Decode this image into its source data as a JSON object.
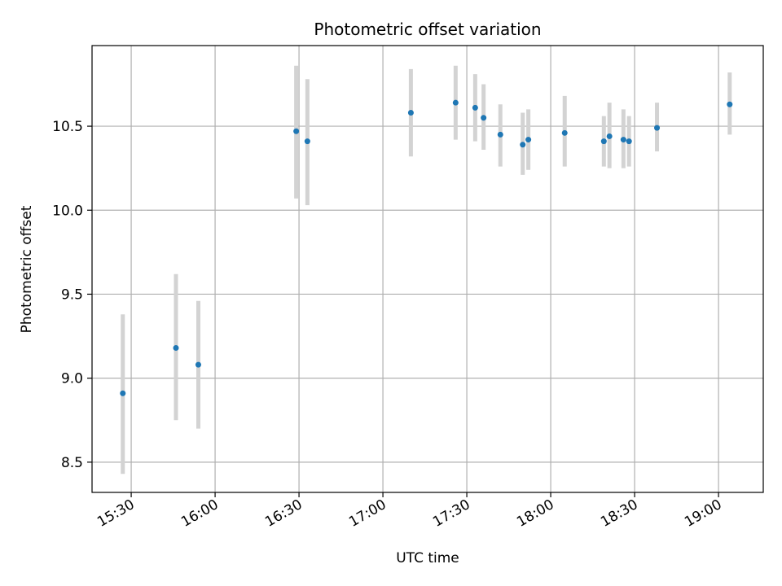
{
  "chart_data": {
    "type": "scatter",
    "title": "Photometric offset variation",
    "xlabel": "UTC time",
    "ylabel": "Photometric offset",
    "x_ticks": [
      "15:30",
      "16:00",
      "16:30",
      "17:00",
      "17:30",
      "18:00",
      "18:30",
      "19:00"
    ],
    "y_ticks": [
      "8.5",
      "9.0",
      "9.5",
      "10.0",
      "10.5"
    ],
    "xlim": [
      "15:16",
      "19:16"
    ],
    "ylim": [
      8.32,
      10.98
    ],
    "grid": true,
    "point_color": "#1f77b4",
    "errorbar_color": "#d3d3d3",
    "points": [
      {
        "t": "15:27",
        "y": 8.91,
        "lo": 8.43,
        "hi": 9.38
      },
      {
        "t": "15:46",
        "y": 9.18,
        "lo": 8.75,
        "hi": 9.62
      },
      {
        "t": "15:54",
        "y": 9.08,
        "lo": 8.7,
        "hi": 9.46
      },
      {
        "t": "16:29",
        "y": 10.47,
        "lo": 10.07,
        "hi": 10.86
      },
      {
        "t": "16:33",
        "y": 10.41,
        "lo": 10.03,
        "hi": 10.78
      },
      {
        "t": "17:10",
        "y": 10.58,
        "lo": 10.32,
        "hi": 10.84
      },
      {
        "t": "17:26",
        "y": 10.64,
        "lo": 10.42,
        "hi": 10.86
      },
      {
        "t": "17:33",
        "y": 10.61,
        "lo": 10.41,
        "hi": 10.81
      },
      {
        "t": "17:36",
        "y": 10.55,
        "lo": 10.36,
        "hi": 10.75
      },
      {
        "t": "17:42",
        "y": 10.45,
        "lo": 10.26,
        "hi": 10.63
      },
      {
        "t": "17:50",
        "y": 10.39,
        "lo": 10.21,
        "hi": 10.58
      },
      {
        "t": "17:52",
        "y": 10.42,
        "lo": 10.24,
        "hi": 10.6
      },
      {
        "t": "18:05",
        "y": 10.46,
        "lo": 10.26,
        "hi": 10.68
      },
      {
        "t": "18:19",
        "y": 10.41,
        "lo": 10.26,
        "hi": 10.56
      },
      {
        "t": "18:21",
        "y": 10.44,
        "lo": 10.25,
        "hi": 10.64
      },
      {
        "t": "18:26",
        "y": 10.42,
        "lo": 10.25,
        "hi": 10.6
      },
      {
        "t": "18:28",
        "y": 10.41,
        "lo": 10.26,
        "hi": 10.56
      },
      {
        "t": "18:38",
        "y": 10.49,
        "lo": 10.35,
        "hi": 10.64
      },
      {
        "t": "19:04",
        "y": 10.63,
        "lo": 10.45,
        "hi": 10.82
      }
    ]
  }
}
